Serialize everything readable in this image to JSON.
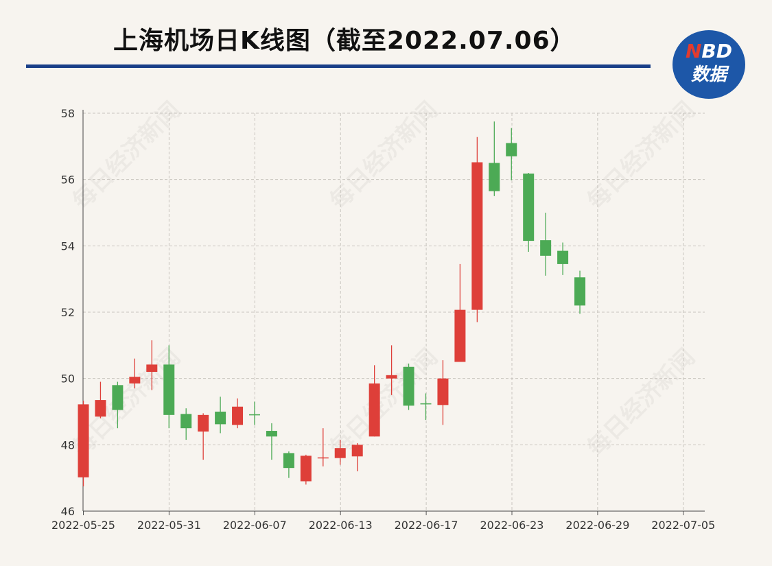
{
  "header": {
    "title": "上海机场日K线图（截至2022.07.06）",
    "logo_top_n": "N",
    "logo_top_bd": "BD",
    "logo_bottom": "数据",
    "watermark": "每日经济新闻"
  },
  "colors": {
    "up": "#de3f39",
    "down": "#4caa55",
    "rule": "#1a3f88",
    "logo_bg": "#1d57a8"
  },
  "chart_data": {
    "type": "candlestick",
    "title": "",
    "ylim": [
      46,
      58
    ],
    "y_ticks": [
      46,
      48,
      50,
      52,
      54,
      56,
      58
    ],
    "x_tick_labels": [
      "2022-05-25",
      "2022-05-31",
      "2022-06-07",
      "2022-06-13",
      "2022-06-17",
      "2022-06-23",
      "2022-06-29",
      "2022-07-05"
    ],
    "x_tick_index": [
      0,
      5,
      10,
      15,
      20,
      25,
      30,
      35
    ],
    "grid": true,
    "candles": [
      {
        "open": 47.02,
        "close": 49.22,
        "high": 49.33,
        "low": 46.75
      },
      {
        "open": 48.85,
        "close": 49.35,
        "high": 49.9,
        "low": 48.8
      },
      {
        "open": 49.8,
        "close": 49.05,
        "high": 49.9,
        "low": 48.5
      },
      {
        "open": 49.85,
        "close": 50.05,
        "high": 50.6,
        "low": 49.7
      },
      {
        "open": 50.2,
        "close": 50.42,
        "high": 51.15,
        "low": 49.65
      },
      {
        "open": 50.42,
        "close": 48.9,
        "high": 51.0,
        "low": 48.5
      },
      {
        "open": 48.93,
        "close": 48.5,
        "high": 49.1,
        "low": 48.15
      },
      {
        "open": 48.4,
        "close": 48.9,
        "high": 48.95,
        "low": 47.55
      },
      {
        "open": 49.0,
        "close": 48.62,
        "high": 49.45,
        "low": 48.35
      },
      {
        "open": 48.6,
        "close": 49.15,
        "high": 49.4,
        "low": 48.5
      },
      {
        "open": 48.92,
        "close": 48.9,
        "high": 49.3,
        "low": 48.6
      },
      {
        "open": 48.42,
        "close": 48.25,
        "high": 48.65,
        "low": 47.55
      },
      {
        "open": 47.75,
        "close": 47.3,
        "high": 47.8,
        "low": 47.0
      },
      {
        "open": 46.9,
        "close": 47.67,
        "high": 47.7,
        "low": 46.8
      },
      {
        "open": 47.62,
        "close": 47.62,
        "high": 48.5,
        "low": 47.35
      },
      {
        "open": 47.6,
        "close": 47.9,
        "high": 48.15,
        "low": 47.4
      },
      {
        "open": 47.65,
        "close": 48.0,
        "high": 48.05,
        "low": 47.2
      },
      {
        "open": 48.25,
        "close": 49.85,
        "high": 50.4,
        "low": 48.25
      },
      {
        "open": 50.0,
        "close": 50.1,
        "high": 51.0,
        "low": 49.5
      },
      {
        "open": 50.35,
        "close": 49.18,
        "high": 50.45,
        "low": 49.05
      },
      {
        "open": 49.25,
        "close": 49.22,
        "high": 49.55,
        "low": 48.75
      },
      {
        "open": 49.2,
        "close": 50.0,
        "high": 50.55,
        "low": 48.6
      },
      {
        "open": 50.5,
        "close": 52.07,
        "high": 53.45,
        "low": 50.5
      },
      {
        "open": 52.07,
        "close": 56.52,
        "high": 57.28,
        "low": 51.7
      },
      {
        "open": 56.5,
        "close": 55.65,
        "high": 57.75,
        "low": 55.5
      },
      {
        "open": 57.1,
        "close": 56.7,
        "high": 57.55,
        "low": 55.98
      },
      {
        "open": 56.18,
        "close": 54.15,
        "high": 56.2,
        "low": 53.82
      },
      {
        "open": 54.17,
        "close": 53.7,
        "high": 55.0,
        "low": 53.1
      },
      {
        "open": 53.85,
        "close": 53.45,
        "high": 54.1,
        "low": 53.12
      },
      {
        "open": 53.05,
        "close": 52.2,
        "high": 53.25,
        "low": 51.95
      }
    ]
  }
}
